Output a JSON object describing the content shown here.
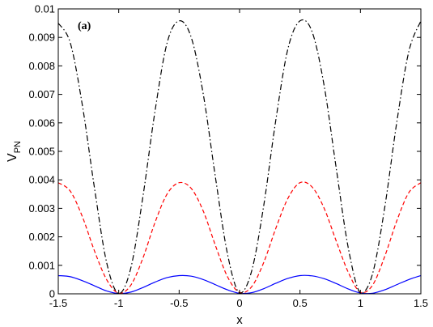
{
  "chart_data": {
    "type": "line",
    "title": "",
    "panel_label": "(a)",
    "xlabel": "x",
    "ylabel": "V",
    "ylabel_subscript": "PN",
    "xlim": [
      -1.5,
      1.5
    ],
    "ylim": [
      0,
      0.01
    ],
    "x_ticks": [
      "-1.5",
      "-1",
      "-0.5",
      "0",
      "0.5",
      "1",
      "1.5"
    ],
    "y_ticks": [
      "0",
      "0.001",
      "0.002",
      "0.003",
      "0.004",
      "0.005",
      "0.006",
      "0.007",
      "0.008",
      "0.009",
      "0.01"
    ],
    "grid": false,
    "legend": "none",
    "series": [
      {
        "color": "#0000ff",
        "style": "solid",
        "x": [
          -1.5,
          -1.4,
          -1.3,
          -1.2,
          -1.1,
          -1.0,
          -0.9,
          -0.8,
          -0.7,
          -0.6,
          -0.5,
          -0.4,
          -0.3,
          -0.2,
          -0.1,
          0.0,
          0.1,
          0.2,
          0.3,
          0.4,
          0.5,
          0.6,
          0.7,
          0.8,
          0.9,
          1.0,
          1.1,
          1.2,
          1.3,
          1.4,
          1.5
        ],
        "values": [
          0.00064,
          0.0006,
          0.00046,
          0.00028,
          0.0001,
          1e-05,
          6e-05,
          0.00022,
          0.00041,
          0.00057,
          0.00064,
          0.00062,
          0.0005,
          0.00032,
          0.00014,
          2e-05,
          4e-05,
          0.00018,
          0.00037,
          0.00054,
          0.00064,
          0.00063,
          0.00053,
          0.00036,
          0.00017,
          3e-05,
          2e-05,
          0.00014,
          0.00032,
          0.0005,
          0.00064
        ]
      },
      {
        "color": "#ff0000",
        "style": "dashed",
        "x": [
          -1.5,
          -1.4,
          -1.3,
          -1.2,
          -1.1,
          -1.0,
          -0.9,
          -0.8,
          -0.7,
          -0.6,
          -0.5,
          -0.4,
          -0.3,
          -0.2,
          -0.1,
          0.0,
          0.1,
          0.2,
          0.3,
          0.4,
          0.5,
          0.6,
          0.7,
          0.8,
          0.9,
          1.0,
          1.1,
          1.2,
          1.3,
          1.4,
          1.5
        ],
        "values": [
          0.0039,
          0.0036,
          0.0027,
          0.0015,
          0.0005,
          2e-05,
          0.0003,
          0.00125,
          0.0025,
          0.0035,
          0.0039,
          0.0037,
          0.0029,
          0.0017,
          0.0006,
          5e-05,
          0.00025,
          0.0011,
          0.0023,
          0.00335,
          0.0039,
          0.00375,
          0.003,
          0.00185,
          0.00075,
          5e-05,
          0.0003,
          0.0013,
          0.00255,
          0.00355,
          0.0039
        ]
      },
      {
        "color": "#000000",
        "style": "dashdot",
        "x": [
          -1.5,
          -1.4,
          -1.3,
          -1.2,
          -1.1,
          -1.0,
          -0.9,
          -0.8,
          -0.7,
          -0.6,
          -0.5,
          -0.4,
          -0.3,
          -0.2,
          -0.1,
          0.0,
          0.1,
          0.2,
          0.3,
          0.4,
          0.5,
          0.6,
          0.7,
          0.8,
          0.9,
          1.0,
          1.1,
          1.2,
          1.3,
          1.4,
          1.5
        ],
        "values": [
          0.0095,
          0.0088,
          0.0066,
          0.0037,
          0.0011,
          1e-05,
          0.0009,
          0.0034,
          0.0064,
          0.0088,
          0.00958,
          0.009,
          0.007,
          0.0041,
          0.0014,
          2e-05,
          0.0008,
          0.0031,
          0.0061,
          0.0086,
          0.00958,
          0.0092,
          0.0073,
          0.0044,
          0.0016,
          2e-05,
          0.0007,
          0.003,
          0.006,
          0.0085,
          0.00958
        ]
      }
    ]
  }
}
